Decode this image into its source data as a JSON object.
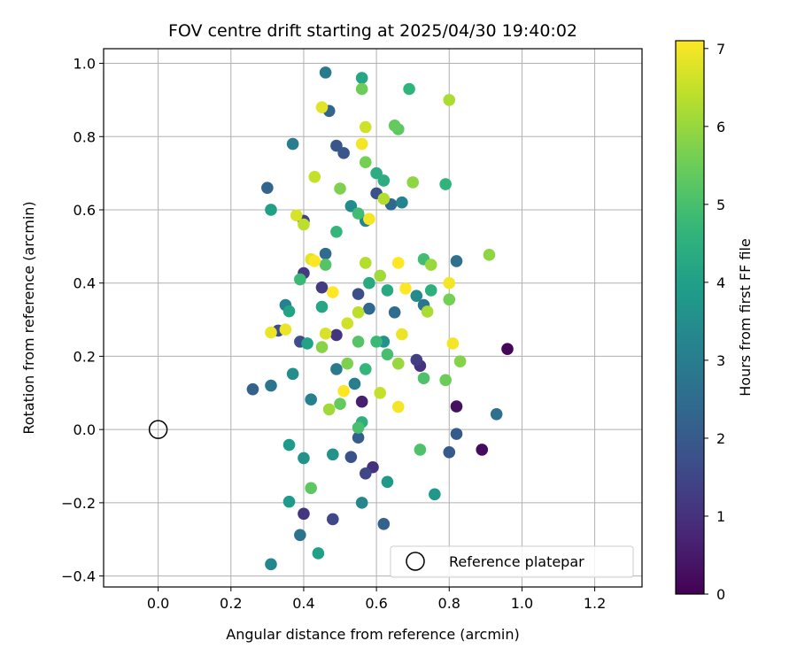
{
  "chart_data": {
    "type": "scatter",
    "title": "FOV centre drift starting at 2025/04/30 19:40:02",
    "xlabel": "Angular distance from reference (arcmin)",
    "ylabel": "Rotation from reference (arcmin)",
    "xlim": [
      -0.15,
      1.33
    ],
    "ylim": [
      -0.43,
      1.04
    ],
    "xticks": [
      0.0,
      0.2,
      0.4,
      0.6,
      0.8,
      1.0,
      1.2
    ],
    "xtick_labels": [
      "0.0",
      "0.2",
      "0.4",
      "0.6",
      "0.8",
      "1.0",
      "1.2"
    ],
    "yticks": [
      -0.4,
      -0.2,
      0.0,
      0.2,
      0.4,
      0.6,
      0.8,
      1.0
    ],
    "ytick_labels": [
      "−0.4",
      "−0.2",
      "0.0",
      "0.2",
      "0.4",
      "0.6",
      "0.8",
      "1.0"
    ],
    "grid": true,
    "legend": {
      "position": "lower-right",
      "entries": [
        "Reference platepar"
      ]
    },
    "reference_point": {
      "x": 0.0,
      "y": 0.0
    },
    "colorbar": {
      "label": "Hours from first FF file",
      "colormap": "viridis",
      "range": [
        0,
        7.1
      ],
      "ticks": [
        0,
        1,
        2,
        3,
        4,
        5,
        6,
        7
      ],
      "tick_labels": [
        "0",
        "1",
        "2",
        "3",
        "4",
        "5",
        "6",
        "7"
      ]
    },
    "points": [
      {
        "x": 0.96,
        "y": 0.22,
        "h": 0.1
      },
      {
        "x": 0.89,
        "y": -0.055,
        "h": 0.2
      },
      {
        "x": 0.82,
        "y": 0.063,
        "h": 0.3
      },
      {
        "x": 0.56,
        "y": 0.076,
        "h": 0.6
      },
      {
        "x": 0.72,
        "y": 0.174,
        "h": 1.0
      },
      {
        "x": 0.59,
        "y": -0.103,
        "h": 1.0
      },
      {
        "x": 0.4,
        "y": -0.23,
        "h": 1.1
      },
      {
        "x": 0.49,
        "y": 0.258,
        "h": 1.1
      },
      {
        "x": 0.45,
        "y": 0.388,
        "h": 1.2
      },
      {
        "x": 0.4,
        "y": 0.427,
        "h": 1.2
      },
      {
        "x": 0.71,
        "y": 0.19,
        "h": 1.3
      },
      {
        "x": 0.4,
        "y": 0.57,
        "h": 1.4
      },
      {
        "x": 0.48,
        "y": -0.245,
        "h": 1.5
      },
      {
        "x": 0.57,
        "y": -0.12,
        "h": 1.5
      },
      {
        "x": 0.33,
        "y": 0.27,
        "h": 1.6
      },
      {
        "x": 0.55,
        "y": 0.37,
        "h": 1.7
      },
      {
        "x": 0.39,
        "y": 0.24,
        "h": 1.7
      },
      {
        "x": 0.53,
        "y": -0.075,
        "h": 1.8
      },
      {
        "x": 0.6,
        "y": 0.645,
        "h": 1.8
      },
      {
        "x": 0.49,
        "y": 0.775,
        "h": 1.9
      },
      {
        "x": 0.51,
        "y": 0.755,
        "h": 1.9
      },
      {
        "x": 0.8,
        "y": -0.062,
        "h": 2.0
      },
      {
        "x": 0.82,
        "y": -0.012,
        "h": 2.0
      },
      {
        "x": 0.55,
        "y": -0.022,
        "h": 2.1
      },
      {
        "x": 0.62,
        "y": -0.258,
        "h": 2.2
      },
      {
        "x": 0.26,
        "y": 0.11,
        "h": 2.2
      },
      {
        "x": 0.3,
        "y": 0.66,
        "h": 2.3
      },
      {
        "x": 0.47,
        "y": 0.87,
        "h": 2.3
      },
      {
        "x": 0.64,
        "y": 0.615,
        "h": 2.4
      },
      {
        "x": 0.58,
        "y": 0.33,
        "h": 2.4
      },
      {
        "x": 0.65,
        "y": 0.32,
        "h": 2.5
      },
      {
        "x": 0.46,
        "y": 0.48,
        "h": 2.5
      },
      {
        "x": 0.93,
        "y": 0.042,
        "h": 2.6
      },
      {
        "x": 0.82,
        "y": 0.46,
        "h": 2.6
      },
      {
        "x": 0.39,
        "y": -0.288,
        "h": 2.7
      },
      {
        "x": 0.31,
        "y": 0.12,
        "h": 2.8
      },
      {
        "x": 0.73,
        "y": 0.34,
        "h": 2.8
      },
      {
        "x": 0.46,
        "y": 0.975,
        "h": 2.9
      },
      {
        "x": 0.49,
        "y": 0.165,
        "h": 2.9
      },
      {
        "x": 0.54,
        "y": 0.125,
        "h": 3.0
      },
      {
        "x": 0.37,
        "y": 0.78,
        "h": 3.0
      },
      {
        "x": 0.35,
        "y": 0.34,
        "h": 3.1
      },
      {
        "x": 0.42,
        "y": 0.082,
        "h": 3.1
      },
      {
        "x": 0.67,
        "y": 0.62,
        "h": 3.2
      },
      {
        "x": 0.57,
        "y": 0.57,
        "h": 3.2
      },
      {
        "x": 0.31,
        "y": -0.368,
        "h": 3.3
      },
      {
        "x": 0.56,
        "y": -0.2,
        "h": 3.3
      },
      {
        "x": 0.71,
        "y": 0.365,
        "h": 3.4
      },
      {
        "x": 0.53,
        "y": 0.61,
        "h": 3.4
      },
      {
        "x": 0.37,
        "y": 0.152,
        "h": 3.5
      },
      {
        "x": 0.4,
        "y": -0.078,
        "h": 3.6
      },
      {
        "x": 0.48,
        "y": -0.068,
        "h": 3.6
      },
      {
        "x": 0.62,
        "y": 0.24,
        "h": 3.6
      },
      {
        "x": 0.76,
        "y": -0.177,
        "h": 3.8
      },
      {
        "x": 0.63,
        "y": -0.143,
        "h": 3.8
      },
      {
        "x": 0.36,
        "y": -0.042,
        "h": 3.9
      },
      {
        "x": 0.36,
        "y": -0.197,
        "h": 3.9
      },
      {
        "x": 0.44,
        "y": -0.338,
        "h": 4.0
      },
      {
        "x": 0.31,
        "y": 0.6,
        "h": 4.0
      },
      {
        "x": 0.41,
        "y": 0.235,
        "h": 4.1
      },
      {
        "x": 0.36,
        "y": 0.323,
        "h": 4.1
      },
      {
        "x": 0.56,
        "y": 0.96,
        "h": 4.2
      },
      {
        "x": 0.45,
        "y": 0.335,
        "h": 4.2
      },
      {
        "x": 0.58,
        "y": 0.4,
        "h": 4.3
      },
      {
        "x": 0.63,
        "y": 0.38,
        "h": 4.3
      },
      {
        "x": 0.6,
        "y": 0.7,
        "h": 4.4
      },
      {
        "x": 0.62,
        "y": 0.68,
        "h": 4.4
      },
      {
        "x": 0.56,
        "y": 0.02,
        "h": 4.5
      },
      {
        "x": 0.75,
        "y": 0.38,
        "h": 4.5
      },
      {
        "x": 0.79,
        "y": 0.67,
        "h": 4.6
      },
      {
        "x": 0.69,
        "y": 0.93,
        "h": 4.6
      },
      {
        "x": 0.57,
        "y": 0.165,
        "h": 4.7
      },
      {
        "x": 0.49,
        "y": 0.54,
        "h": 4.7
      },
      {
        "x": 0.39,
        "y": 0.41,
        "h": 4.8
      },
      {
        "x": 0.6,
        "y": 0.24,
        "h": 4.8
      },
      {
        "x": 0.55,
        "y": 0.59,
        "h": 4.9
      },
      {
        "x": 0.73,
        "y": 0.465,
        "h": 4.9
      },
      {
        "x": 0.55,
        "y": 0.005,
        "h": 5.0
      },
      {
        "x": 0.63,
        "y": 0.205,
        "h": 5.0
      },
      {
        "x": 0.73,
        "y": 0.14,
        "h": 5.1
      },
      {
        "x": 0.72,
        "y": -0.055,
        "h": 5.1
      },
      {
        "x": 0.55,
        "y": 0.24,
        "h": 5.2
      },
      {
        "x": 0.46,
        "y": 0.45,
        "h": 5.2
      },
      {
        "x": 0.66,
        "y": 0.82,
        "h": 5.3
      },
      {
        "x": 0.42,
        "y": -0.16,
        "h": 5.3
      },
      {
        "x": 0.5,
        "y": 0.07,
        "h": 5.4
      },
      {
        "x": 0.65,
        "y": 0.83,
        "h": 5.4
      },
      {
        "x": 0.56,
        "y": 0.93,
        "h": 5.5
      },
      {
        "x": 0.79,
        "y": 0.135,
        "h": 5.5
      },
      {
        "x": 0.8,
        "y": 0.355,
        "h": 5.6
      },
      {
        "x": 0.57,
        "y": 0.73,
        "h": 5.6
      },
      {
        "x": 0.5,
        "y": 0.658,
        "h": 5.7
      },
      {
        "x": 0.52,
        "y": 0.18,
        "h": 5.7
      },
      {
        "x": 0.45,
        "y": 0.225,
        "h": 5.8
      },
      {
        "x": 0.83,
        "y": 0.186,
        "h": 5.8
      },
      {
        "x": 0.91,
        "y": 0.477,
        "h": 5.9
      },
      {
        "x": 0.7,
        "y": 0.675,
        "h": 5.9
      },
      {
        "x": 0.75,
        "y": 0.45,
        "h": 6.0
      },
      {
        "x": 0.66,
        "y": 0.18,
        "h": 6.0
      },
      {
        "x": 0.47,
        "y": 0.055,
        "h": 6.1
      },
      {
        "x": 0.61,
        "y": 0.42,
        "h": 6.1
      },
      {
        "x": 0.74,
        "y": 0.322,
        "h": 6.2
      },
      {
        "x": 0.8,
        "y": 0.9,
        "h": 6.2
      },
      {
        "x": 0.57,
        "y": 0.455,
        "h": 6.3
      },
      {
        "x": 0.62,
        "y": 0.63,
        "h": 6.3
      },
      {
        "x": 0.55,
        "y": 0.32,
        "h": 6.4
      },
      {
        "x": 0.4,
        "y": 0.56,
        "h": 6.4
      },
      {
        "x": 0.61,
        "y": 0.1,
        "h": 6.5
      },
      {
        "x": 0.43,
        "y": 0.69,
        "h": 6.5
      },
      {
        "x": 0.57,
        "y": 0.826,
        "h": 6.6
      },
      {
        "x": 0.52,
        "y": 0.29,
        "h": 6.6
      },
      {
        "x": 0.38,
        "y": 0.585,
        "h": 6.7
      },
      {
        "x": 0.46,
        "y": 0.262,
        "h": 6.7
      },
      {
        "x": 0.45,
        "y": 0.88,
        "h": 6.8
      },
      {
        "x": 0.42,
        "y": 0.465,
        "h": 6.8
      },
      {
        "x": 0.35,
        "y": 0.273,
        "h": 6.9
      },
      {
        "x": 0.31,
        "y": 0.265,
        "h": 6.9
      },
      {
        "x": 0.67,
        "y": 0.26,
        "h": 6.9
      },
      {
        "x": 0.66,
        "y": 0.062,
        "h": 7.0
      },
      {
        "x": 0.81,
        "y": 0.235,
        "h": 7.0
      },
      {
        "x": 0.8,
        "y": 0.4,
        "h": 7.0
      },
      {
        "x": 0.56,
        "y": 0.78,
        "h": 7.0
      },
      {
        "x": 0.58,
        "y": 0.575,
        "h": 7.0
      },
      {
        "x": 0.51,
        "y": 0.105,
        "h": 7.1
      },
      {
        "x": 0.68,
        "y": 0.385,
        "h": 7.1
      },
      {
        "x": 0.48,
        "y": 0.375,
        "h": 7.1
      },
      {
        "x": 0.66,
        "y": 0.455,
        "h": 7.1
      },
      {
        "x": 0.43,
        "y": 0.46,
        "h": 7.1
      }
    ]
  }
}
